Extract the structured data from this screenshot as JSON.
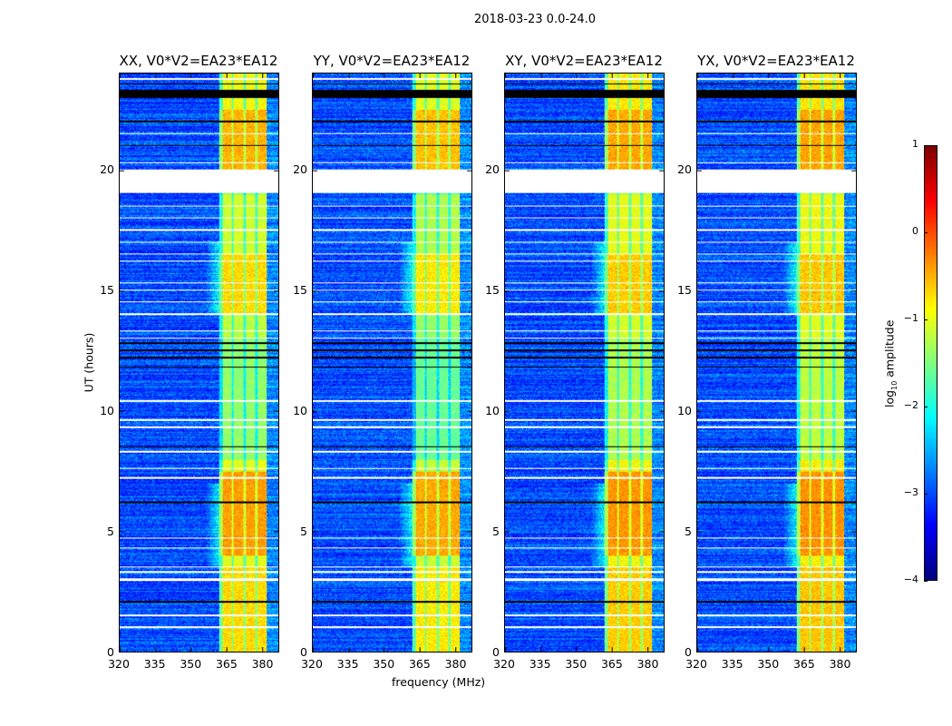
{
  "suptitle": "2018-03-23 0.0-24.0",
  "chart_data": {
    "type": "heatmap",
    "xlabel": "frequency (MHz)",
    "ylabel": "UT (hours)",
    "xlim": [
      320,
      387
    ],
    "ylim": [
      0,
      24
    ],
    "xticks": [
      "320",
      "335",
      "350",
      "365",
      "380"
    ],
    "yticks": [
      "0",
      "5",
      "10",
      "15",
      "20"
    ],
    "panels": [
      {
        "title": "XX, V0*V2=EA23*EA12",
        "band_gain": 1.0
      },
      {
        "title": "YY, V0*V2=EA23*EA12",
        "band_gain": 1.15
      },
      {
        "title": "XY, V0*V2=EA23*EA12",
        "band_gain": 0.9
      },
      {
        "title": "YX, V0*V2=EA23*EA12",
        "band_gain": 0.85
      }
    ],
    "band_MHz": [
      362,
      382
    ],
    "band_channel_gaps_MHz": [
      367.5,
      372.5,
      377.5
    ],
    "background_log_amplitude": -3.0,
    "band_log_amplitude_by_hour": [
      [
        0,
        -0.7
      ],
      [
        3.5,
        -1.0
      ],
      [
        4,
        -0.4
      ],
      [
        7.5,
        -1.0
      ],
      [
        8,
        -1.4
      ],
      [
        13,
        -1.2
      ],
      [
        14,
        -0.7
      ],
      [
        16.5,
        -1.1
      ],
      [
        19,
        -1.4
      ],
      [
        20,
        -0.5
      ],
      [
        22.5,
        -0.9
      ],
      [
        24,
        -0.9
      ]
    ],
    "flagged_white_hours": [
      [
        19.05,
        20.05
      ],
      [
        1.0,
        1.06
      ],
      [
        1.5,
        1.56
      ],
      [
        2.95,
        3.05
      ],
      [
        3.3,
        3.36
      ],
      [
        3.5,
        3.55
      ],
      [
        4.3,
        4.35
      ],
      [
        4.7,
        4.75
      ],
      [
        7.2,
        7.27
      ],
      [
        7.6,
        7.66
      ],
      [
        8.3,
        8.35
      ],
      [
        9.3,
        9.36
      ],
      [
        9.6,
        9.66
      ],
      [
        10.4,
        10.45
      ],
      [
        13.0,
        13.06
      ],
      [
        13.3,
        13.35
      ],
      [
        14.0,
        14.05
      ],
      [
        14.5,
        14.55
      ],
      [
        15.0,
        15.05
      ],
      [
        15.3,
        15.35
      ],
      [
        16.2,
        16.25
      ],
      [
        16.5,
        16.55
      ],
      [
        17.0,
        17.05
      ],
      [
        17.5,
        17.55
      ],
      [
        18.0,
        18.05
      ],
      [
        18.5,
        18.55
      ],
      [
        20.3,
        20.35
      ],
      [
        21.5,
        21.55
      ],
      [
        23.75,
        23.82
      ]
    ],
    "flagged_black_hours": [
      [
        2.05,
        2.12
      ],
      [
        6.18,
        6.25
      ],
      [
        8.5,
        8.56
      ],
      [
        11.8,
        11.86
      ],
      [
        12.2,
        12.26
      ],
      [
        12.5,
        12.56
      ],
      [
        12.8,
        12.86
      ],
      [
        21.0,
        21.06
      ],
      [
        22.0,
        22.08
      ],
      [
        23.0,
        23.35
      ],
      [
        23.55,
        23.6
      ]
    ],
    "colorbar": {
      "label_main": "log",
      "label_sub": "10",
      "label_rest": " amplitude",
      "range": [
        -4,
        1
      ],
      "ticks": [
        "1",
        "0",
        "−1",
        "−2",
        "−3",
        "−4"
      ],
      "colormap": "jet"
    }
  }
}
